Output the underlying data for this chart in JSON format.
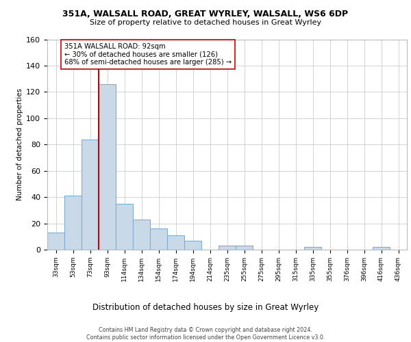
{
  "title1": "351A, WALSALL ROAD, GREAT WYRLEY, WALSALL, WS6 6DP",
  "title2": "Size of property relative to detached houses in Great Wyrley",
  "xlabel": "Distribution of detached houses by size in Great Wyrley",
  "ylabel": "Number of detached properties",
  "categories": [
    "33sqm",
    "53sqm",
    "73sqm",
    "93sqm",
    "114sqm",
    "134sqm",
    "154sqm",
    "174sqm",
    "194sqm",
    "214sqm",
    "235sqm",
    "255sqm",
    "275sqm",
    "295sqm",
    "315sqm",
    "335sqm",
    "355sqm",
    "376sqm",
    "396sqm",
    "416sqm",
    "436sqm"
  ],
  "values": [
    13,
    41,
    84,
    126,
    35,
    23,
    16,
    11,
    7,
    0,
    3,
    3,
    0,
    0,
    0,
    2,
    0,
    0,
    0,
    2,
    0
  ],
  "bar_color": "#c9d9e8",
  "bar_edgecolor": "#7bafd4",
  "vline_index": 3,
  "vline_color": "#cc0000",
  "annotation_text": "351A WALSALL ROAD: 92sqm\n← 30% of detached houses are smaller (126)\n68% of semi-detached houses are larger (285) →",
  "annotation_box_color": "#ffffff",
  "annotation_box_edgecolor": "#cc0000",
  "ylim": [
    0,
    160
  ],
  "yticks": [
    0,
    20,
    40,
    60,
    80,
    100,
    120,
    140,
    160
  ],
  "footer": "Contains HM Land Registry data © Crown copyright and database right 2024.\nContains public sector information licensed under the Open Government Licence v3.0.",
  "bg_color": "#ffffff",
  "grid_color": "#cccccc"
}
